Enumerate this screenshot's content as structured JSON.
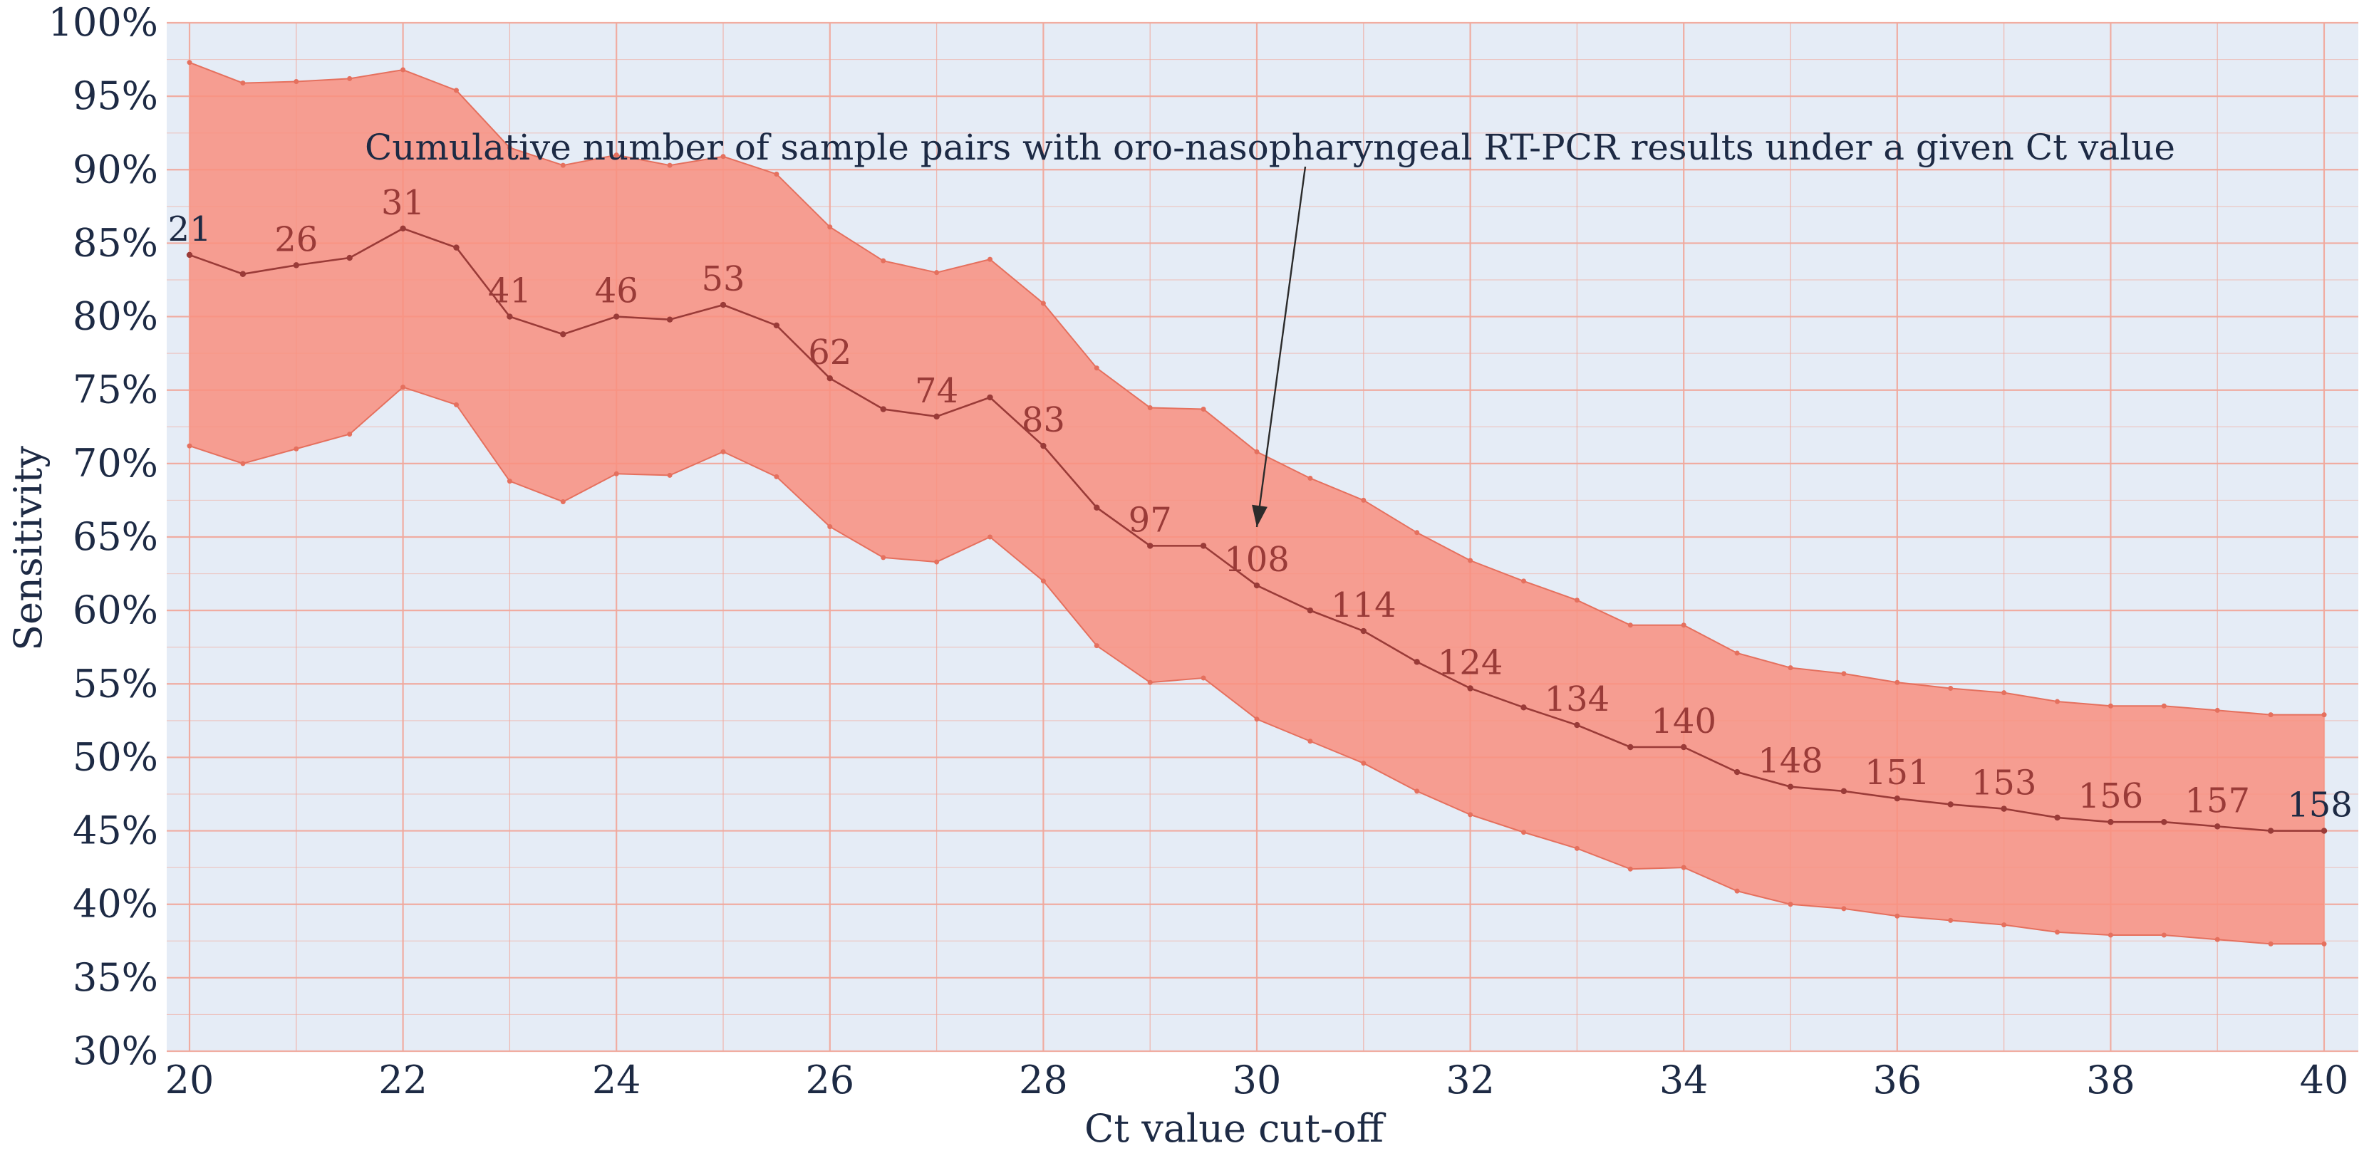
{
  "chart_data": {
    "type": "line",
    "title": "",
    "xlabel": "Ct value cut-off",
    "ylabel": "Sensitivity",
    "xlim": [
      20,
      40
    ],
    "ylim": [
      30,
      100
    ],
    "grid": true,
    "x_ticks": [
      20,
      22,
      24,
      26,
      28,
      30,
      32,
      34,
      36,
      38,
      40
    ],
    "x_tick_labels": [
      "20",
      "22",
      "24",
      "26",
      "28",
      "30",
      "32",
      "34",
      "36",
      "38",
      "40"
    ],
    "y_ticks": [
      30,
      35,
      40,
      45,
      50,
      55,
      60,
      65,
      70,
      75,
      80,
      85,
      90,
      95,
      100
    ],
    "y_tick_labels": [
      "30%",
      "35%",
      "40%",
      "45%",
      "50%",
      "55%",
      "60%",
      "65%",
      "70%",
      "75%",
      "80%",
      "85%",
      "90%",
      "95%",
      "100%"
    ],
    "x": [
      20,
      20.5,
      21,
      21.5,
      22,
      22.5,
      23,
      23.5,
      24,
      24.5,
      25,
      25.5,
      26,
      26.5,
      27,
      27.5,
      28,
      28.5,
      29,
      29.5,
      30,
      30.5,
      31,
      31.5,
      32,
      32.5,
      33,
      33.5,
      34,
      34.5,
      35,
      35.5,
      36,
      36.5,
      37,
      37.5,
      38,
      38.5,
      39,
      39.5,
      40
    ],
    "series": [
      {
        "name": "Sensitivity",
        "values": [
          84.2,
          82.9,
          83.5,
          84.0,
          86.0,
          84.7,
          80.0,
          78.8,
          80.0,
          79.8,
          80.8,
          79.4,
          75.8,
          73.7,
          73.2,
          74.5,
          71.2,
          67.0,
          64.4,
          64.4,
          61.7,
          60.0,
          58.6,
          56.5,
          54.7,
          53.4,
          52.2,
          50.7,
          50.7,
          49.0,
          48.0,
          47.7,
          47.2,
          46.8,
          46.5,
          45.9,
          45.6,
          45.6,
          45.3,
          45.0,
          45.0
        ]
      },
      {
        "name": "95% CI lower",
        "values": [
          71.2,
          70.0,
          71.0,
          72.0,
          75.2,
          74.0,
          68.8,
          67.4,
          69.3,
          69.2,
          70.8,
          69.1,
          65.7,
          63.6,
          63.3,
          65.0,
          62.0,
          57.6,
          55.1,
          55.4,
          52.6,
          51.1,
          49.6,
          47.7,
          46.1,
          44.9,
          43.8,
          42.4,
          42.5,
          40.9,
          40.0,
          39.7,
          39.2,
          38.9,
          38.6,
          38.1,
          37.9,
          37.9,
          37.6,
          37.3,
          37.3
        ]
      },
      {
        "name": "95% CI upper",
        "values": [
          97.3,
          95.9,
          96.0,
          96.2,
          96.8,
          95.4,
          91.5,
          90.3,
          91.0,
          90.3,
          90.9,
          89.7,
          86.1,
          83.8,
          83.0,
          83.9,
          80.9,
          76.5,
          73.8,
          73.7,
          70.8,
          69.0,
          67.5,
          65.3,
          63.4,
          62.0,
          60.7,
          59.0,
          59.0,
          57.1,
          56.1,
          55.7,
          55.1,
          54.7,
          54.4,
          53.8,
          53.5,
          53.5,
          53.2,
          52.9,
          52.9
        ]
      }
    ],
    "count_labels": [
      {
        "x": 20,
        "text": "21"
      },
      {
        "x": 21,
        "text": "26"
      },
      {
        "x": 22,
        "text": "31"
      },
      {
        "x": 23,
        "text": "41"
      },
      {
        "x": 24,
        "text": "46"
      },
      {
        "x": 25,
        "text": "53"
      },
      {
        "x": 26,
        "text": "62"
      },
      {
        "x": 27,
        "text": "74"
      },
      {
        "x": 28,
        "text": "83"
      },
      {
        "x": 29,
        "text": "97"
      },
      {
        "x": 30,
        "text": "108"
      },
      {
        "x": 31,
        "text": "114"
      },
      {
        "x": 32,
        "text": "124"
      },
      {
        "x": 33,
        "text": "134"
      },
      {
        "x": 34,
        "text": "140"
      },
      {
        "x": 35,
        "text": "148"
      },
      {
        "x": 36,
        "text": "151"
      },
      {
        "x": 37,
        "text": "153"
      },
      {
        "x": 38,
        "text": "156"
      },
      {
        "x": 39,
        "text": "157"
      },
      {
        "x": 40,
        "text": "158"
      }
    ],
    "annotation": {
      "text": "Cumulative number of sample pairs with oro-nasopharyngeal RT-PCR results under a given Ct value",
      "arrow_target_x": 30,
      "arrow_target_y": 65
    },
    "colors": {
      "plot_background": "#e5ecf6",
      "grid": "#f1a99d",
      "band_fill": "#f98f7f",
      "band_edge": "#e5705e",
      "line": "#9a3b38",
      "label_dark": "#1d2a44",
      "label_red": "#9a3b38"
    }
  }
}
